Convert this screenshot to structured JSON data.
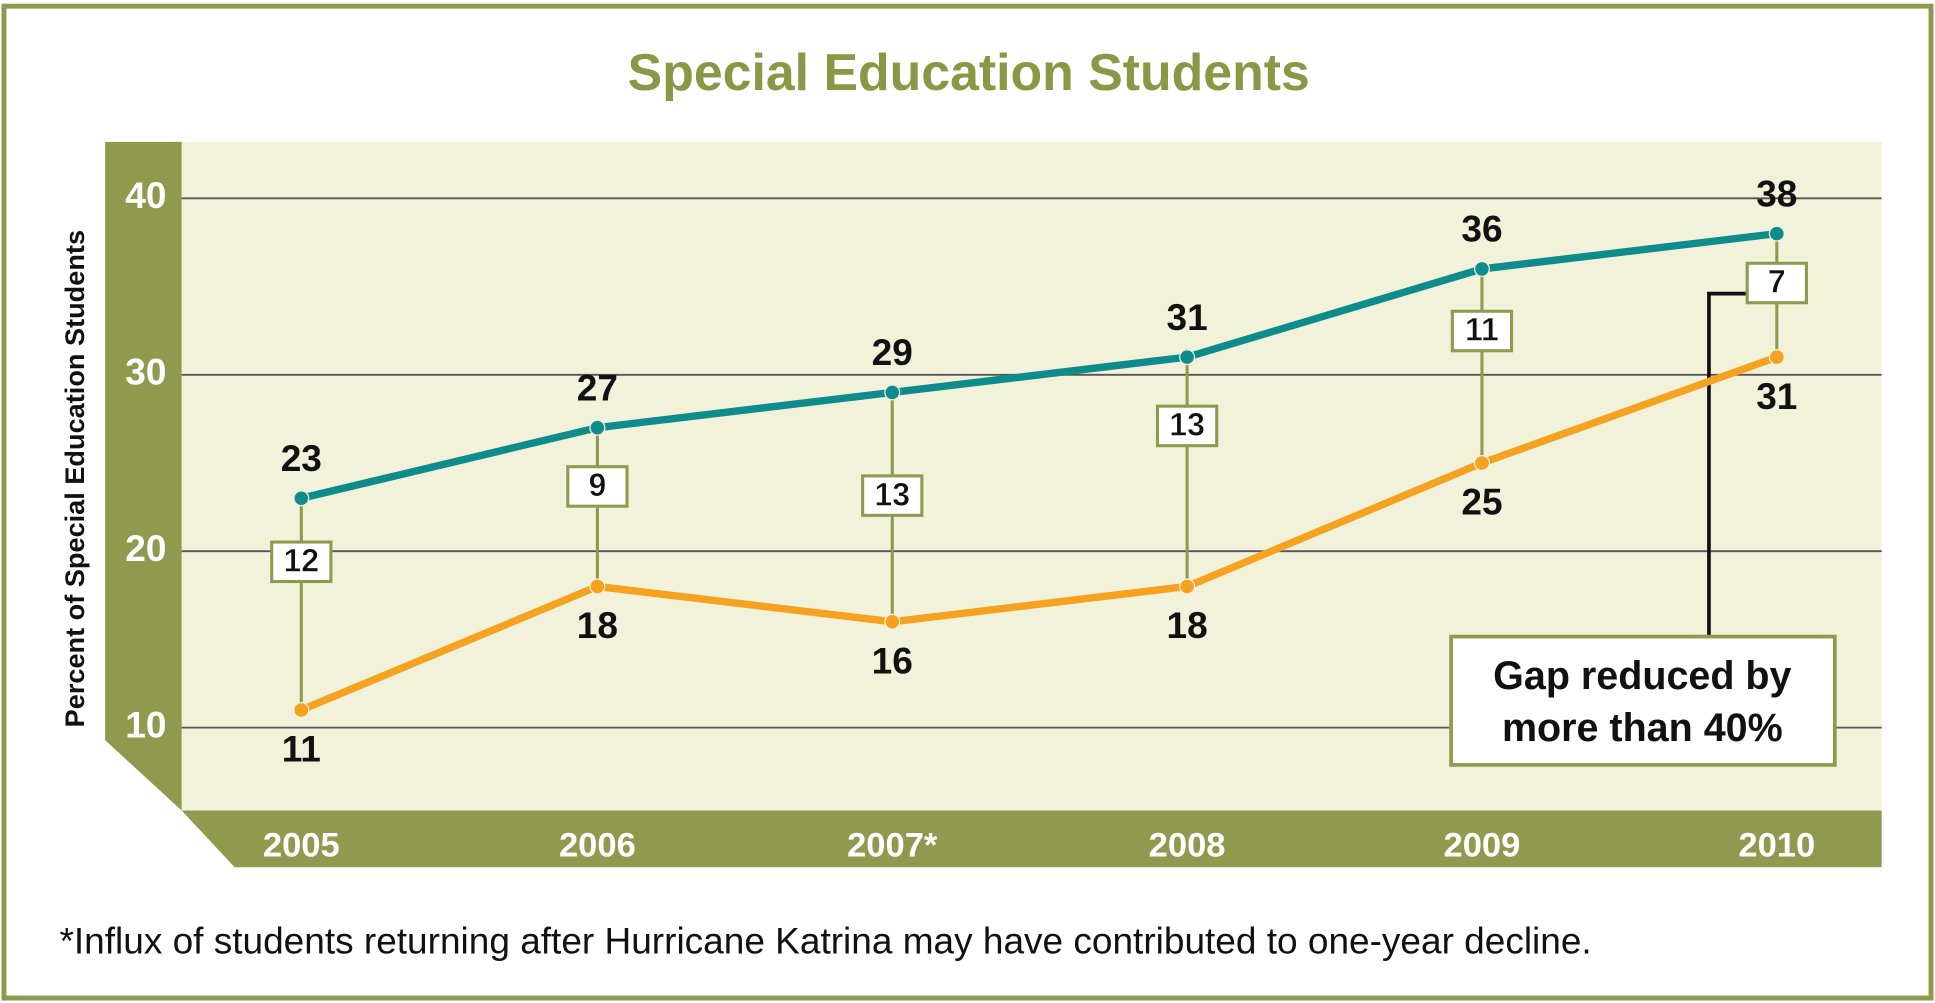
{
  "chart_data": {
    "type": "line",
    "title": "Special Education Students",
    "y_label": "Percent of Special Education Students",
    "categories": [
      "2005",
      "2006",
      "2007*",
      "2008",
      "2009",
      "2010"
    ],
    "series": [
      {
        "color": "#0e8b8b",
        "values": [
          23,
          27,
          29,
          31,
          36,
          38
        ]
      },
      {
        "color": "#f4a21f",
        "values": [
          11,
          18,
          16,
          18,
          25,
          31
        ]
      }
    ],
    "gaps": [
      12,
      9,
      13,
      13,
      11,
      7
    ],
    "ylim": [
      5.3,
      43.2
    ],
    "yticks": [
      10,
      20,
      30,
      40
    ],
    "grid": true,
    "annotation": [
      "Gap reduced by",
      "more than 40%"
    ],
    "footnote": "*Influx of students returning after Hurricane Katrina may have contributed to one-year decline."
  }
}
